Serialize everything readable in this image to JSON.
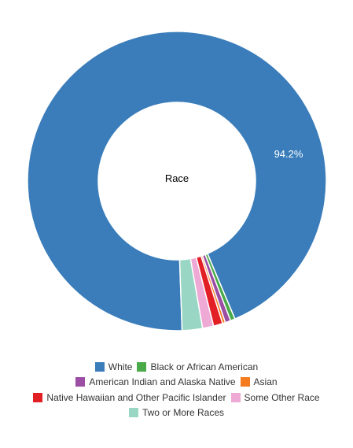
{
  "chart_data": {
    "type": "pie",
    "title": "Race",
    "labels": [
      "White",
      "Black or African American",
      "American Indian and Alaska Native",
      "Asian",
      "Native Hawaiian and Other Pacific Islander",
      "Some Other Race",
      "Two or More Races"
    ],
    "values": [
      94.2,
      0.5,
      0.6,
      0.3,
      1.0,
      1.2,
      2.2
    ],
    "colors": [
      "#3a7dba",
      "#4aaa4a",
      "#9b4ea3",
      "#f47c1e",
      "#e31f26",
      "#eea9d4",
      "#99d7c4"
    ],
    "data_labels": [
      "94.2%",
      "",
      "",
      "",
      "",
      "",
      ""
    ],
    "legend_position": "bottom"
  }
}
